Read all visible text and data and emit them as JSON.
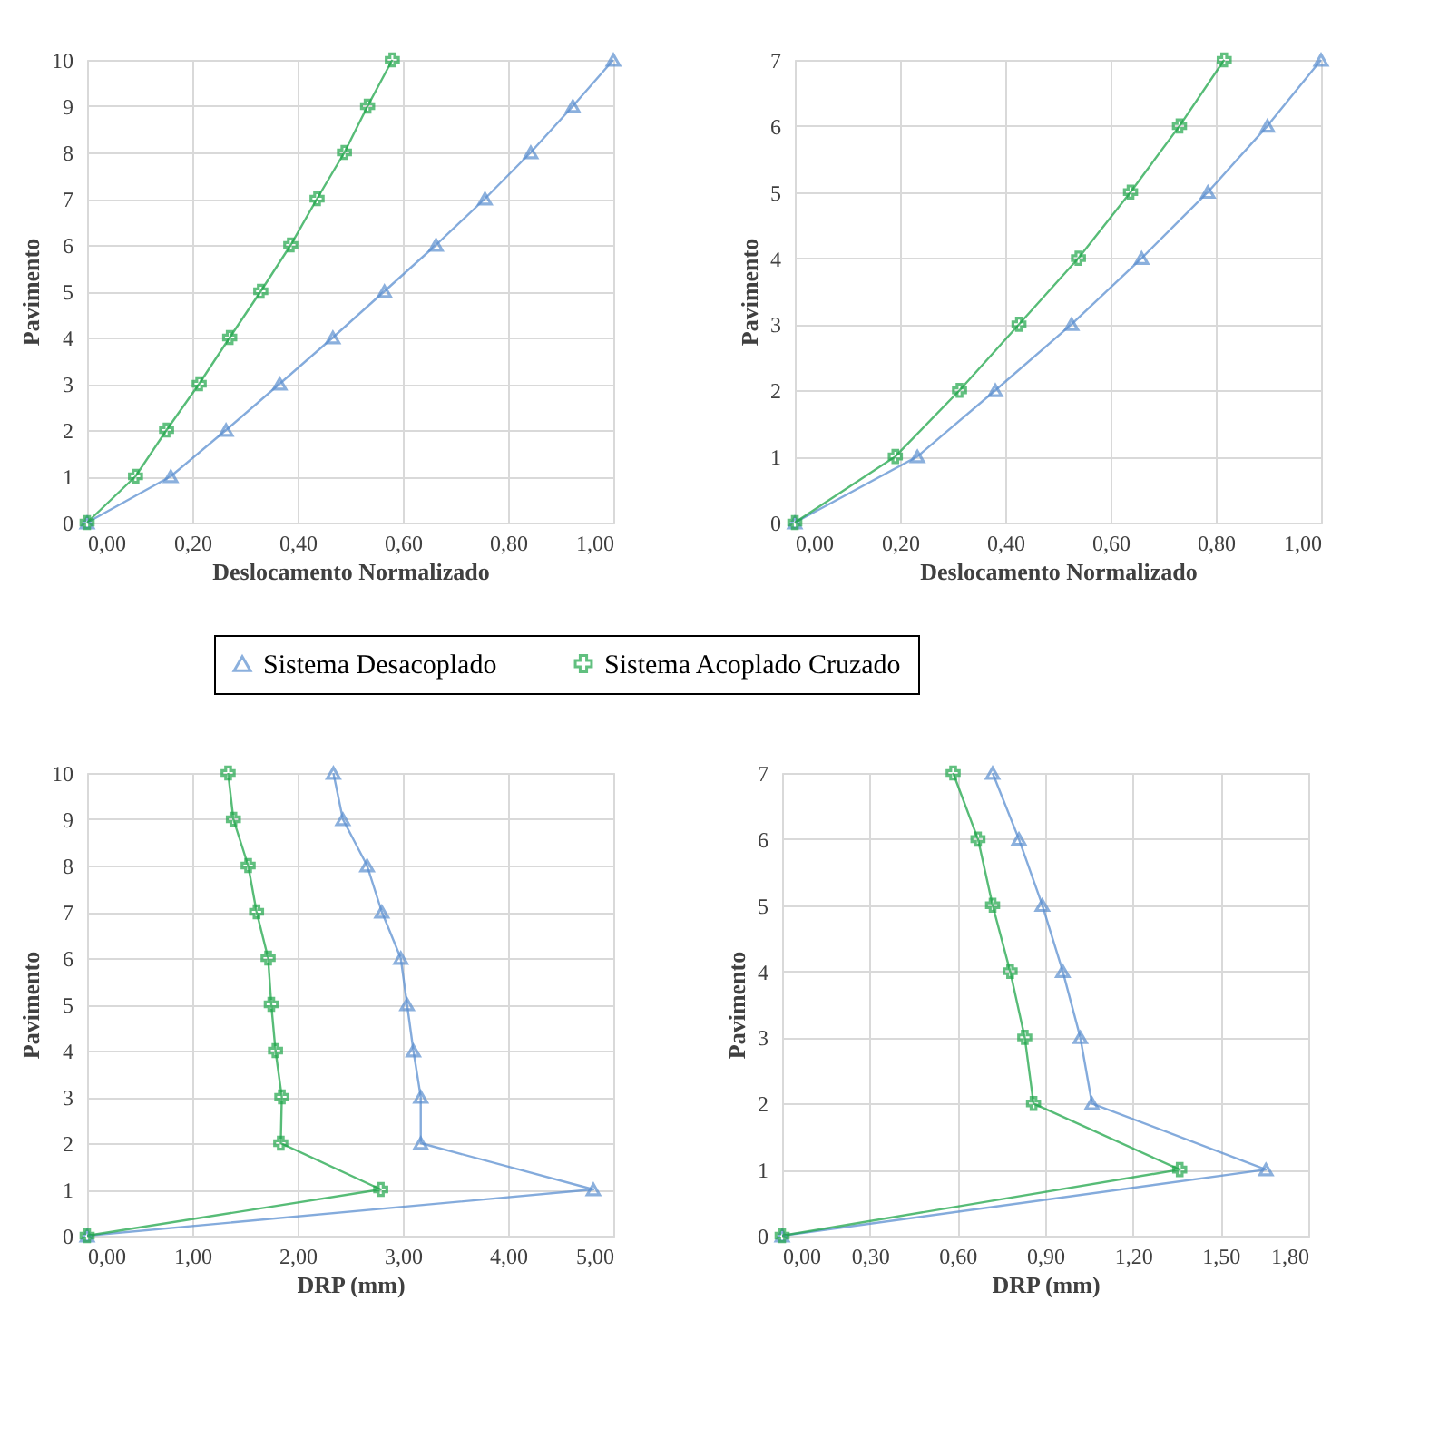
{
  "chart_data": [
    {
      "type": "line",
      "xlabel": "Deslocamento Normalizado",
      "ylabel": "Pavimento",
      "legend": "bottom",
      "grid": true,
      "line_style": "solid",
      "xlim": [
        0,
        1
      ],
      "xticks": [
        {
          "value": 0,
          "label": "0,00"
        },
        {
          "value": 0.2,
          "label": "0,20"
        },
        {
          "value": 0.4,
          "label": "0,40"
        },
        {
          "value": 0.6,
          "label": "0,60"
        },
        {
          "value": 0.8,
          "label": "0,80"
        },
        {
          "value": 1,
          "label": "1,00"
        }
      ],
      "ylim": [
        0,
        10
      ],
      "yticks": [
        0,
        1,
        2,
        3,
        4,
        5,
        6,
        7,
        8,
        9,
        10
      ],
      "series": [
        {
          "name": "Sistema Desacoplado",
          "color": "#5b8fd0",
          "marker": "triangle",
          "x": [
            0,
            0.159,
            0.264,
            0.366,
            0.467,
            0.565,
            0.663,
            0.756,
            0.843,
            0.923,
            1.0
          ],
          "values": [
            0,
            1,
            2,
            3,
            4,
            5,
            6,
            7,
            8,
            9,
            10
          ]
        },
        {
          "name": "Sistema Acoplado Cruzado",
          "color": "#1fa64a",
          "marker": "cross",
          "x": [
            0,
            0.092,
            0.151,
            0.213,
            0.271,
            0.33,
            0.387,
            0.437,
            0.489,
            0.533,
            0.58
          ],
          "values": [
            0,
            1,
            2,
            3,
            4,
            5,
            6,
            7,
            8,
            9,
            10
          ]
        }
      ]
    },
    {
      "type": "line",
      "xlabel": "Deslocamento Normalizado",
      "ylabel": "Pavimento",
      "grid": true,
      "line_style": "solid",
      "xlim": [
        0,
        1
      ],
      "xticks": [
        {
          "value": 0,
          "label": "0,00"
        },
        {
          "value": 0.2,
          "label": "0,20"
        },
        {
          "value": 0.4,
          "label": "0,40"
        },
        {
          "value": 0.6,
          "label": "0,60"
        },
        {
          "value": 0.8,
          "label": "0,80"
        },
        {
          "value": 1,
          "label": "1,00"
        }
      ],
      "ylim": [
        0,
        7
      ],
      "yticks": [
        0,
        1,
        2,
        3,
        4,
        5,
        6,
        7
      ],
      "series": [
        {
          "color": "#5b8fd0",
          "marker": "triangle",
          "x": [
            0,
            0.233,
            0.381,
            0.526,
            0.659,
            0.785,
            0.898,
            1.0
          ],
          "values": [
            0,
            1,
            2,
            3,
            4,
            5,
            6,
            7
          ]
        },
        {
          "color": "#1fa64a",
          "marker": "cross",
          "x": [
            0,
            0.191,
            0.313,
            0.426,
            0.539,
            0.638,
            0.731,
            0.816
          ],
          "values": [
            0,
            1,
            2,
            3,
            4,
            5,
            6,
            7
          ]
        }
      ]
    },
    {
      "type": "line",
      "xlabel": "DRP (mm)",
      "ylabel": "Pavimento",
      "grid": true,
      "line_style": "solid",
      "xlim": [
        0,
        5
      ],
      "xticks": [
        {
          "value": 0,
          "label": "0,00"
        },
        {
          "value": 1,
          "label": "1,00"
        },
        {
          "value": 2,
          "label": "2,00"
        },
        {
          "value": 3,
          "label": "3,00"
        },
        {
          "value": 4,
          "label": "4,00"
        },
        {
          "value": 5,
          "label": "5,00"
        }
      ],
      "ylim": [
        0,
        10
      ],
      "yticks": [
        0,
        1,
        2,
        3,
        4,
        5,
        6,
        7,
        8,
        9,
        10
      ],
      "series": [
        {
          "color": "#5b8fd0",
          "marker": "triangle",
          "x": [
            0,
            4.81,
            3.17,
            3.17,
            3.1,
            3.04,
            2.98,
            2.8,
            2.66,
            2.43,
            2.34
          ],
          "values": [
            0,
            1,
            2,
            3,
            4,
            5,
            6,
            7,
            8,
            9,
            10
          ]
        },
        {
          "color": "#1fa64a",
          "marker": "cross",
          "x": [
            0,
            2.79,
            1.84,
            1.85,
            1.79,
            1.75,
            1.72,
            1.61,
            1.53,
            1.39,
            1.34
          ],
          "values": [
            0,
            1,
            2,
            3,
            4,
            5,
            6,
            7,
            8,
            9,
            10
          ]
        }
      ]
    },
    {
      "type": "line",
      "xlabel": "DRP (mm)",
      "ylabel": "Pavimento",
      "grid": true,
      "line_style": "solid",
      "xlim": [
        0,
        1.8
      ],
      "xticks": [
        {
          "value": 0,
          "label": "0,00"
        },
        {
          "value": 0.3,
          "label": "0,30"
        },
        {
          "value": 0.6,
          "label": "0,60"
        },
        {
          "value": 0.9,
          "label": "0,90"
        },
        {
          "value": 1.2,
          "label": "1,20"
        },
        {
          "value": 1.5,
          "label": "1,50"
        },
        {
          "value": 1.8,
          "label": "1,80"
        }
      ],
      "ylim": [
        0,
        7
      ],
      "yticks": [
        0,
        1,
        2,
        3,
        4,
        5,
        6,
        7
      ],
      "series": [
        {
          "color": "#5b8fd0",
          "marker": "triangle",
          "x": [
            0,
            1.655,
            1.06,
            1.02,
            0.96,
            0.89,
            0.81,
            0.72
          ],
          "values": [
            0,
            1,
            2,
            3,
            4,
            5,
            6,
            7
          ]
        },
        {
          "color": "#1fa64a",
          "marker": "cross",
          "x": [
            0,
            1.36,
            0.86,
            0.83,
            0.78,
            0.72,
            0.67,
            0.585
          ],
          "values": [
            0,
            1,
            2,
            3,
            4,
            5,
            6,
            7
          ]
        }
      ]
    }
  ]
}
